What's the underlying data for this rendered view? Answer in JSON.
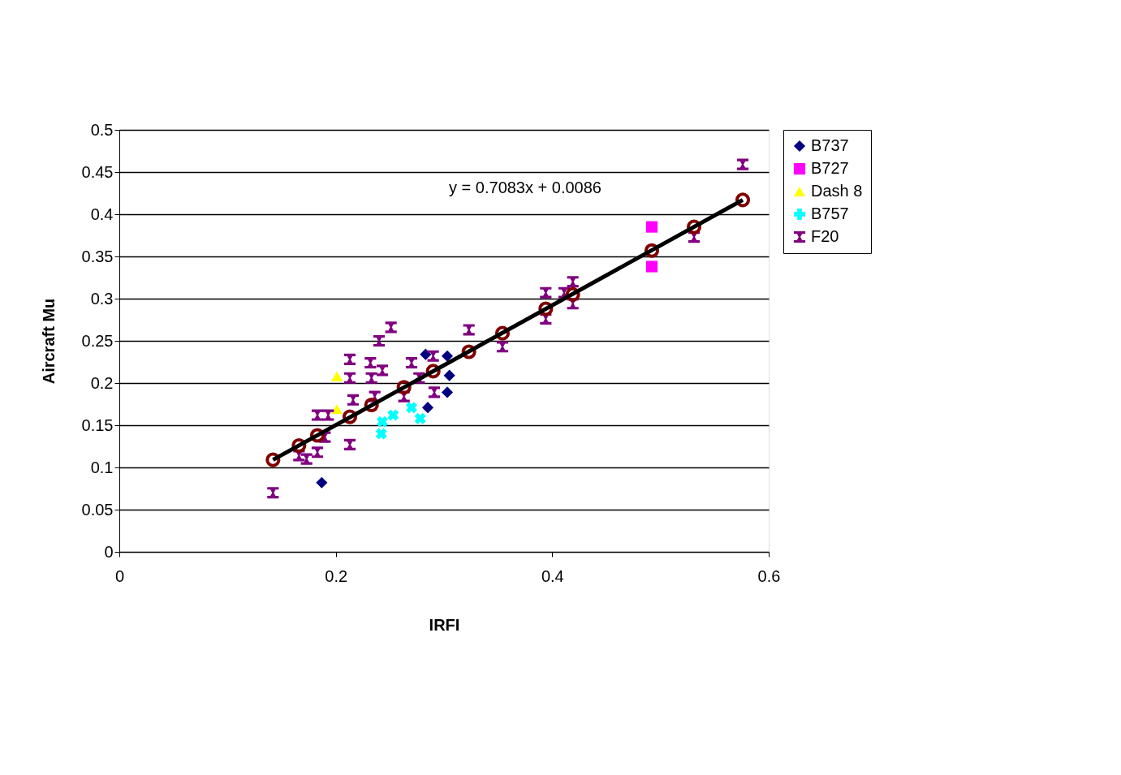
{
  "chart_data": {
    "type": "scatter",
    "xlabel": "IRFI",
    "ylabel": "Aircraft Mu",
    "xlim": [
      0,
      0.6
    ],
    "xticks": [
      0,
      0.2,
      0.4,
      0.6
    ],
    "ylim": [
      0,
      0.5
    ],
    "yticks": [
      0,
      0.05,
      0.1,
      0.15,
      0.2,
      0.25,
      0.3,
      0.35,
      0.4,
      0.45,
      0.5
    ],
    "grid": "y",
    "legend": "right",
    "annotations": [
      "y = 0.7083x + 0.0086"
    ],
    "series": [
      {
        "name": "B737",
        "color": "#000080",
        "marker": "diamond",
        "x": [
          0.187,
          0.283,
          0.303,
          0.303,
          0.285,
          0.305
        ],
        "values": [
          0.082,
          0.234,
          0.232,
          0.189,
          0.171,
          0.209
        ]
      },
      {
        "name": "B727",
        "color": "#ff00ff",
        "marker": "square",
        "x": [
          0.492,
          0.492
        ],
        "values": [
          0.385,
          0.338
        ]
      },
      {
        "name": "Dash 8",
        "color": "#ffff00",
        "marker": "triangle",
        "x": [
          0.201,
          0.201
        ],
        "values": [
          0.208,
          0.169
        ]
      },
      {
        "name": "B757",
        "color": "#00ffff",
        "marker": "cross",
        "x": [
          0.243,
          0.242,
          0.253,
          0.278,
          0.27
        ],
        "values": [
          0.154,
          0.14,
          0.162,
          0.158,
          0.171
        ]
      },
      {
        "name": "F20",
        "color": "#800080",
        "marker": "star",
        "x": [
          0.142,
          0.166,
          0.173,
          0.183,
          0.19,
          0.193,
          0.183,
          0.213,
          0.213,
          0.213,
          0.216,
          0.232,
          0.233,
          0.24,
          0.251,
          0.243,
          0.236,
          0.27,
          0.277,
          0.29,
          0.291,
          0.263,
          0.323,
          0.354,
          0.394,
          0.394,
          0.419,
          0.419,
          0.411,
          0.531,
          0.576
        ],
        "values": [
          0.07,
          0.114,
          0.11,
          0.118,
          0.136,
          0.162,
          0.162,
          0.127,
          0.228,
          0.206,
          0.18,
          0.224,
          0.206,
          0.25,
          0.266,
          0.215,
          0.184,
          0.224,
          0.206,
          0.232,
          0.189,
          0.184,
          0.263,
          0.243,
          0.307,
          0.276,
          0.32,
          0.294,
          0.307,
          0.373,
          0.459
        ]
      },
      {
        "color": "#800000",
        "marker": "circle",
        "x": [
          0.142,
          0.166,
          0.183,
          0.213,
          0.233,
          0.263,
          0.29,
          0.323,
          0.354,
          0.394,
          0.419,
          0.492,
          0.531,
          0.576
        ],
        "values": [
          0.109,
          0.126,
          0.138,
          0.16,
          0.174,
          0.195,
          0.214,
          0.237,
          0.259,
          0.288,
          0.305,
          0.357,
          0.385,
          0.417
        ]
      },
      {
        "type": "line",
        "color": "#000000",
        "marker": "none",
        "x": [
          0.142,
          0.576
        ],
        "values": [
          0.109,
          0.417
        ]
      }
    ]
  }
}
